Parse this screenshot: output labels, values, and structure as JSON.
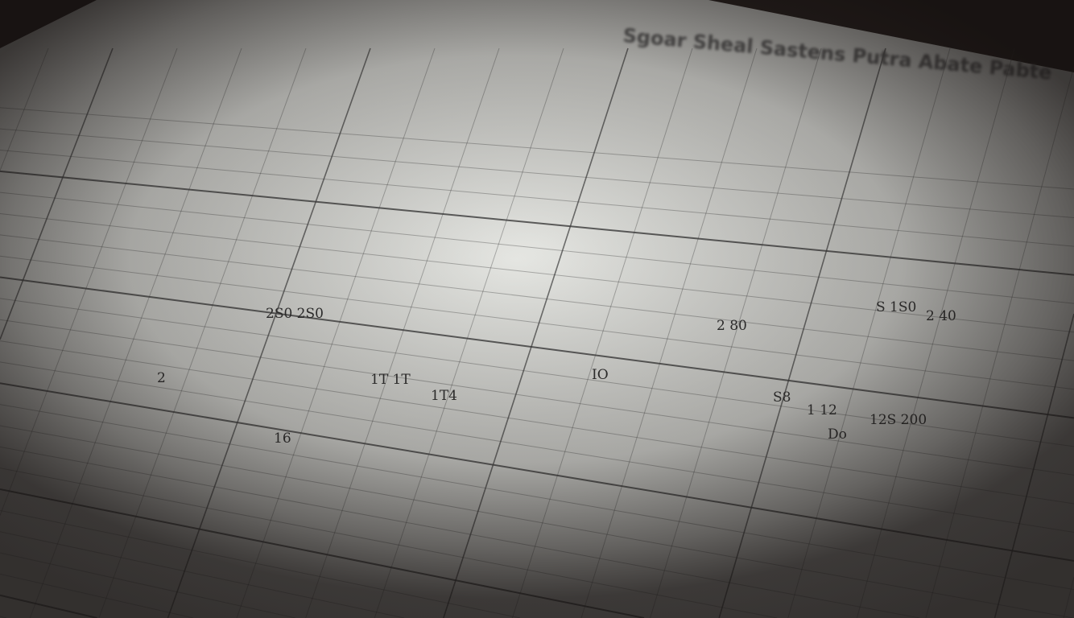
{
  "scene": {
    "description_type": "photo of a grid sheet with handwritten entries",
    "colors": {
      "paper": "#d9dad6",
      "ink": "#2b2b2b",
      "background": "#241c1a"
    }
  },
  "sheet": {
    "title": "Sgoar Sheal Sastens Putra Abate Pabte",
    "entries": [
      "2 80",
      "2S0 2S0",
      "1T4",
      "12S 200",
      "16",
      "2",
      "1 12",
      "IO",
      "2 40",
      "S 1S0",
      "Do",
      "S8",
      "1T 1T"
    ]
  }
}
